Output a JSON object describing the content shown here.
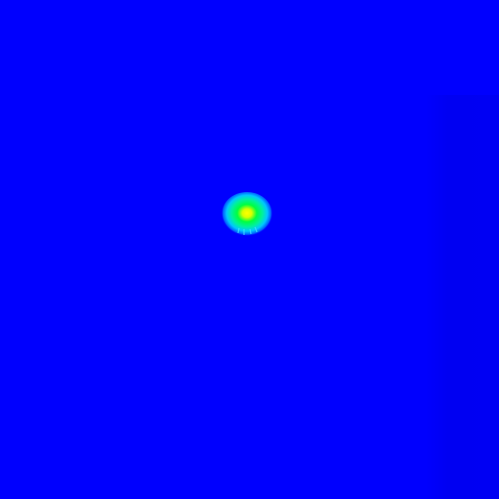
{
  "image": {
    "colormap": "jet",
    "background_color": "#0000fe",
    "band_color": "#0000e8",
    "hotspot": {
      "peak_color": "#ffff00",
      "mid_color": "#00ff40",
      "edge_color": "#00c8ff"
    }
  }
}
